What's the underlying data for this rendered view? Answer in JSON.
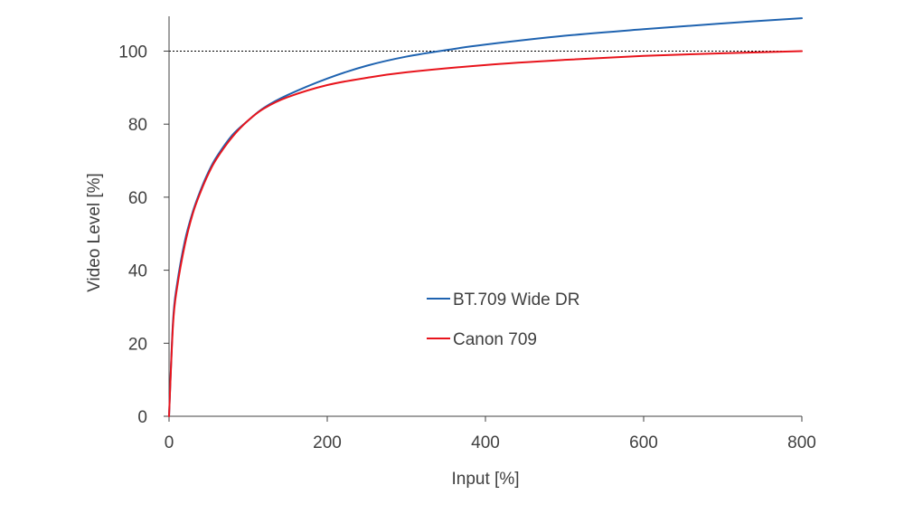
{
  "chart_data": {
    "type": "line",
    "title": "",
    "xlabel": "Input [%]",
    "ylabel": "Video Level [%]",
    "xlim": [
      0,
      800
    ],
    "ylim": [
      0,
      110
    ],
    "xticks": [
      0,
      200,
      400,
      600,
      800
    ],
    "yticks": [
      0,
      20,
      40,
      60,
      80,
      100
    ],
    "reference_line": {
      "y": 100,
      "style": "dotted",
      "color": "#000000"
    },
    "grid": false,
    "legend_position": "center-right",
    "series": [
      {
        "name": "BT.709 Wide DR",
        "color": "#1f63b0",
        "x": [
          0,
          5,
          10,
          20,
          30,
          40,
          50,
          60,
          80,
          100,
          120,
          150,
          200,
          250,
          300,
          360,
          400,
          500,
          600,
          700,
          800
        ],
        "y": [
          0,
          26,
          36,
          48,
          56,
          62,
          67,
          71,
          77,
          81,
          84.5,
          88,
          92.5,
          96,
          98.5,
          100.6,
          101.8,
          104.2,
          106,
          107.6,
          109
        ]
      },
      {
        "name": "Canon 709",
        "color": "#e8141c",
        "x": [
          0,
          5,
          10,
          20,
          30,
          40,
          50,
          60,
          80,
          100,
          120,
          150,
          200,
          250,
          300,
          400,
          500,
          600,
          700,
          800
        ],
        "y": [
          0,
          25,
          35,
          47,
          55.5,
          61.5,
          66.5,
          70.5,
          76.5,
          81,
          84.3,
          87.4,
          90.7,
          92.7,
          94.2,
          96.2,
          97.6,
          98.7,
          99.4,
          100
        ]
      }
    ]
  }
}
